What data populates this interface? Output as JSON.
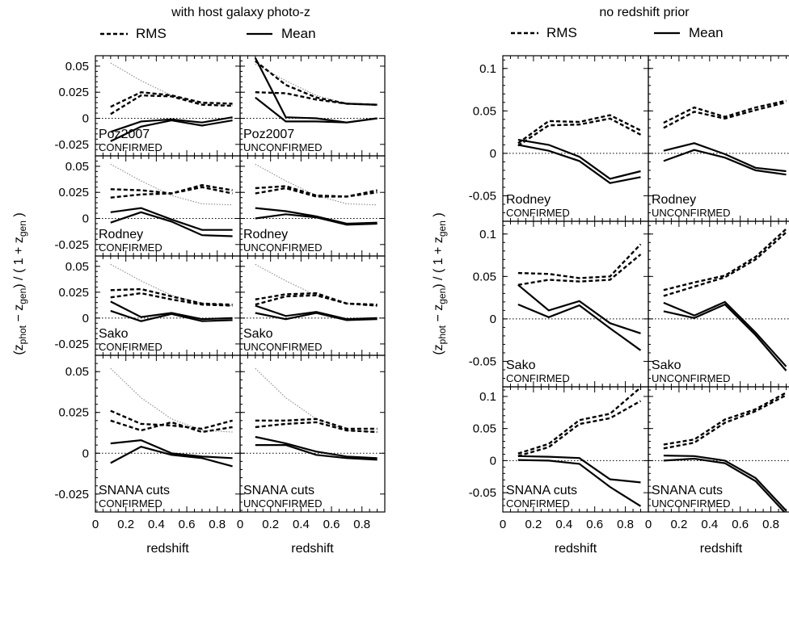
{
  "figure": {
    "legend": {
      "rms_label": "RMS",
      "mean_label": "Mean"
    }
  },
  "chart_data": [
    {
      "type": "line",
      "title": "with host galaxy photo-z",
      "xlabel": "redshift",
      "ylabel": "(z_phot − z_gen) / ( 1 + z_gen )",
      "ylabel_parts": {
        "open": "(z",
        "phot": "phot",
        "minus": " − z",
        "gen": "gen",
        "mid": ") / ( 1 + z",
        "gen2": "gen",
        "close": " )"
      },
      "xlim": [
        0,
        0.95
      ],
      "ylim": [
        -0.036,
        0.06
      ],
      "xticks": [
        0,
        0.2,
        0.4,
        0.6,
        0.8
      ],
      "xtick_labels": [
        "0",
        "0.2",
        "0.4",
        "0.6",
        "0.8"
      ],
      "yticks": [
        -0.025,
        0,
        0.025,
        0.05
      ],
      "ytick_labels": [
        "-0.025",
        "0",
        "0.025",
        "0.05"
      ],
      "grid": false,
      "legend_position": "top",
      "columns": [
        "CONFIRMED",
        "UNCONFIRMED"
      ],
      "rows": [
        "Poz2007",
        "Rodney",
        "Sako",
        "SNANA cuts"
      ],
      "panels": [
        {
          "name": "Poz2007",
          "status": "CONFIRMED",
          "x": [
            0.1,
            0.3,
            0.5,
            0.7,
            0.9
          ],
          "reference": [
            0.053,
            0.036,
            0.022,
            0.014,
            0.012
          ],
          "series": [
            {
              "stat": "rms",
              "values": [
                0.011,
                0.025,
                0.022,
                0.015,
                0.014
              ]
            },
            {
              "stat": "rms",
              "values": [
                0.004,
                0.022,
                0.021,
                0.013,
                0.012
              ]
            },
            {
              "stat": "mean",
              "values": [
                -0.013,
                -0.003,
                -0.001,
                -0.004,
                0.001
              ]
            },
            {
              "stat": "mean",
              "values": [
                -0.022,
                -0.008,
                -0.002,
                -0.007,
                -0.002
              ]
            }
          ]
        },
        {
          "name": "Poz2007",
          "status": "UNCONFIRMED",
          "x": [
            0.1,
            0.3,
            0.5,
            0.7,
            0.9
          ],
          "reference": [
            0.052,
            0.036,
            0.022,
            0.014,
            0.012
          ],
          "series": [
            {
              "stat": "rms",
              "values": [
                0.055,
                0.032,
                0.02,
                0.014,
                0.013
              ]
            },
            {
              "stat": "rms",
              "values": [
                0.025,
                0.024,
                0.018,
                0.014,
                0.013
              ]
            },
            {
              "stat": "mean",
              "values": [
                0.058,
                0.001,
                0.0,
                -0.004,
                0.0
              ]
            },
            {
              "stat": "mean",
              "values": [
                0.02,
                -0.003,
                -0.003,
                -0.004,
                0.0
              ]
            }
          ]
        },
        {
          "name": "Rodney",
          "status": "CONFIRMED",
          "x": [
            0.1,
            0.3,
            0.5,
            0.7,
            0.9
          ],
          "reference": [
            0.052,
            0.036,
            0.022,
            0.014,
            0.013
          ],
          "series": [
            {
              "stat": "rms",
              "values": [
                0.028,
                0.027,
                0.024,
                0.032,
                0.027
              ]
            },
            {
              "stat": "rms",
              "values": [
                0.02,
                0.023,
                0.024,
                0.03,
                0.024
              ]
            },
            {
              "stat": "mean",
              "values": [
                0.006,
                0.01,
                -0.001,
                -0.011,
                -0.011
              ]
            },
            {
              "stat": "mean",
              "values": [
                -0.004,
                0.006,
                -0.003,
                -0.016,
                -0.017
              ]
            }
          ]
        },
        {
          "name": "Rodney",
          "status": "UNCONFIRMED",
          "x": [
            0.1,
            0.3,
            0.5,
            0.7,
            0.9
          ],
          "reference": [
            0.052,
            0.036,
            0.022,
            0.014,
            0.013
          ],
          "series": [
            {
              "stat": "rms",
              "values": [
                0.029,
                0.031,
                0.022,
                0.021,
                0.027
              ]
            },
            {
              "stat": "rms",
              "values": [
                0.024,
                0.029,
                0.021,
                0.021,
                0.025
              ]
            },
            {
              "stat": "mean",
              "values": [
                0.01,
                0.007,
                0.002,
                -0.005,
                -0.004
              ]
            },
            {
              "stat": "mean",
              "values": [
                0.0,
                0.004,
                0.001,
                -0.006,
                -0.005
              ]
            }
          ]
        },
        {
          "name": "Sako",
          "status": "CONFIRMED",
          "x": [
            0.1,
            0.3,
            0.5,
            0.7,
            0.9
          ],
          "reference": [
            0.052,
            0.036,
            0.022,
            0.014,
            0.012
          ],
          "series": [
            {
              "stat": "rms",
              "values": [
                0.027,
                0.028,
                0.021,
                0.014,
                0.013
              ]
            },
            {
              "stat": "rms",
              "values": [
                0.02,
                0.024,
                0.018,
                0.013,
                0.012
              ]
            },
            {
              "stat": "mean",
              "values": [
                0.016,
                0.001,
                0.005,
                -0.001,
                0.0
              ]
            },
            {
              "stat": "mean",
              "values": [
                0.007,
                -0.003,
                0.004,
                -0.003,
                -0.002
              ]
            }
          ]
        },
        {
          "name": "Sako",
          "status": "UNCONFIRMED",
          "x": [
            0.1,
            0.3,
            0.5,
            0.7,
            0.9
          ],
          "reference": [
            0.052,
            0.036,
            0.022,
            0.014,
            0.012
          ],
          "series": [
            {
              "stat": "rms",
              "values": [
                0.018,
                0.023,
                0.024,
                0.014,
                0.013
              ]
            },
            {
              "stat": "rms",
              "values": [
                0.013,
                0.021,
                0.022,
                0.014,
                0.012
              ]
            },
            {
              "stat": "mean",
              "values": [
                0.012,
                0.002,
                0.006,
                -0.001,
                0.0
              ]
            },
            {
              "stat": "mean",
              "values": [
                0.005,
                -0.001,
                0.005,
                -0.002,
                -0.001
              ]
            }
          ]
        },
        {
          "name": "SNANA cuts",
          "status": "CONFIRMED",
          "x": [
            0.1,
            0.3,
            0.5,
            0.7,
            0.9
          ],
          "reference": [
            0.052,
            0.034,
            0.021,
            0.014,
            0.013
          ],
          "series": [
            {
              "stat": "rms",
              "values": [
                0.026,
                0.018,
                0.017,
                0.015,
                0.02
              ]
            },
            {
              "stat": "rms",
              "values": [
                0.02,
                0.014,
                0.019,
                0.013,
                0.016
              ]
            },
            {
              "stat": "mean",
              "values": [
                0.006,
                0.008,
                0.0,
                -0.002,
                -0.003
              ]
            },
            {
              "stat": "mean",
              "values": [
                -0.006,
                0.004,
                -0.001,
                -0.003,
                -0.008
              ]
            }
          ]
        },
        {
          "name": "SNANA cuts",
          "status": "UNCONFIRMED",
          "x": [
            0.1,
            0.3,
            0.5,
            0.7,
            0.9
          ],
          "reference": [
            0.052,
            0.034,
            0.021,
            0.014,
            0.013
          ],
          "series": [
            {
              "stat": "rms",
              "values": [
                0.02,
                0.02,
                0.021,
                0.015,
                0.015
              ]
            },
            {
              "stat": "rms",
              "values": [
                0.016,
                0.018,
                0.019,
                0.014,
                0.013
              ]
            },
            {
              "stat": "mean",
              "values": [
                0.01,
                0.006,
                0.001,
                -0.002,
                -0.003
              ]
            },
            {
              "stat": "mean",
              "values": [
                0.005,
                0.005,
                -0.001,
                -0.003,
                -0.004
              ]
            }
          ]
        }
      ]
    },
    {
      "type": "line",
      "title": "no redshift prior",
      "xlabel": "redshift",
      "ylabel": "(z_phot − z_gen) / ( 1 + z_gen )",
      "ylabel_parts": {
        "open": "(z",
        "phot": "phot",
        "minus": " − z",
        "gen": "gen",
        "mid": ") / ( 1 + z",
        "gen2": "gen",
        "close": " )"
      },
      "xlim": [
        0,
        0.95
      ],
      "ylim": [
        -0.08,
        0.115
      ],
      "xticks": [
        0,
        0.2,
        0.4,
        0.6,
        0.8
      ],
      "xtick_labels": [
        "0",
        "0.2",
        "0.4",
        "0.6",
        "0.8"
      ],
      "yticks": [
        -0.05,
        0,
        0.05,
        0.1
      ],
      "ytick_labels": [
        "-0.05",
        "0",
        "0.05",
        "0.1"
      ],
      "grid": false,
      "legend_position": "top",
      "columns": [
        "CONFIRMED",
        "UNCONFIRMED"
      ],
      "rows": [
        "Rodney",
        "Sako",
        "SNANA cuts"
      ],
      "panels": [
        {
          "name": "Rodney",
          "status": "CONFIRMED",
          "x": [
            0.1,
            0.3,
            0.5,
            0.7,
            0.9
          ],
          "series": [
            {
              "stat": "rms",
              "values": [
                0.012,
                0.038,
                0.037,
                0.045,
                0.027
              ]
            },
            {
              "stat": "rms",
              "values": [
                0.009,
                0.033,
                0.034,
                0.041,
                0.022
              ]
            },
            {
              "stat": "mean",
              "values": [
                0.016,
                0.01,
                -0.004,
                -0.03,
                -0.021
              ]
            },
            {
              "stat": "mean",
              "values": [
                0.01,
                0.003,
                -0.009,
                -0.035,
                -0.028
              ]
            }
          ]
        },
        {
          "name": "Rodney",
          "status": "UNCONFIRMED",
          "x": [
            0.1,
            0.3,
            0.5,
            0.7,
            0.9
          ],
          "series": [
            {
              "stat": "rms",
              "values": [
                0.036,
                0.054,
                0.043,
                0.054,
                0.062
              ]
            },
            {
              "stat": "rms",
              "values": [
                0.03,
                0.049,
                0.041,
                0.051,
                0.06
              ]
            },
            {
              "stat": "mean",
              "values": [
                0.003,
                0.012,
                -0.001,
                -0.017,
                -0.021
              ]
            },
            {
              "stat": "mean",
              "values": [
                -0.009,
                0.004,
                -0.005,
                -0.02,
                -0.025
              ]
            }
          ]
        },
        {
          "name": "Sako",
          "status": "CONFIRMED",
          "x": [
            0.1,
            0.3,
            0.5,
            0.7,
            0.9
          ],
          "series": [
            {
              "stat": "rms",
              "values": [
                0.054,
                0.053,
                0.048,
                0.05,
                0.088
              ]
            },
            {
              "stat": "rms",
              "values": [
                0.04,
                0.046,
                0.044,
                0.046,
                0.076
              ]
            },
            {
              "stat": "mean",
              "values": [
                0.04,
                0.01,
                0.021,
                -0.005,
                -0.017
              ]
            },
            {
              "stat": "mean",
              "values": [
                0.017,
                0.002,
                0.016,
                -0.011,
                -0.037
              ]
            }
          ]
        },
        {
          "name": "Sako",
          "status": "UNCONFIRMED",
          "x": [
            0.1,
            0.3,
            0.5,
            0.7,
            0.9
          ],
          "series": [
            {
              "stat": "rms",
              "values": [
                0.034,
                0.043,
                0.051,
                0.073,
                0.106
              ]
            },
            {
              "stat": "rms",
              "values": [
                0.027,
                0.038,
                0.049,
                0.07,
                0.102
              ]
            },
            {
              "stat": "mean",
              "values": [
                0.019,
                0.004,
                0.02,
                -0.016,
                -0.056
              ]
            },
            {
              "stat": "mean",
              "values": [
                0.009,
                0.001,
                0.017,
                -0.019,
                -0.061
              ]
            }
          ]
        },
        {
          "name": "SNANA cuts",
          "status": "CONFIRMED",
          "x": [
            0.1,
            0.3,
            0.5,
            0.7,
            0.9
          ],
          "series": [
            {
              "stat": "rms",
              "values": [
                0.011,
                0.026,
                0.063,
                0.073,
                0.114
              ]
            },
            {
              "stat": "rms",
              "values": [
                0.007,
                0.021,
                0.057,
                0.066,
                0.093
              ]
            },
            {
              "stat": "mean",
              "values": [
                0.007,
                0.006,
                0.004,
                -0.029,
                -0.034
              ]
            },
            {
              "stat": "mean",
              "values": [
                0.001,
                0.0,
                -0.005,
                -0.041,
                -0.071
              ]
            }
          ]
        },
        {
          "name": "SNANA cuts",
          "status": "UNCONFIRMED",
          "x": [
            0.1,
            0.3,
            0.5,
            0.7,
            0.9
          ],
          "series": [
            {
              "stat": "rms",
              "values": [
                0.025,
                0.033,
                0.064,
                0.08,
                0.106
              ]
            },
            {
              "stat": "rms",
              "values": [
                0.019,
                0.028,
                0.059,
                0.077,
                0.102
              ]
            },
            {
              "stat": "mean",
              "values": [
                0.008,
                0.007,
                0.0,
                -0.027,
                -0.078
              ]
            },
            {
              "stat": "mean",
              "values": [
                0.0,
                0.003,
                -0.004,
                -0.032,
                -0.083
              ]
            }
          ]
        }
      ]
    }
  ]
}
